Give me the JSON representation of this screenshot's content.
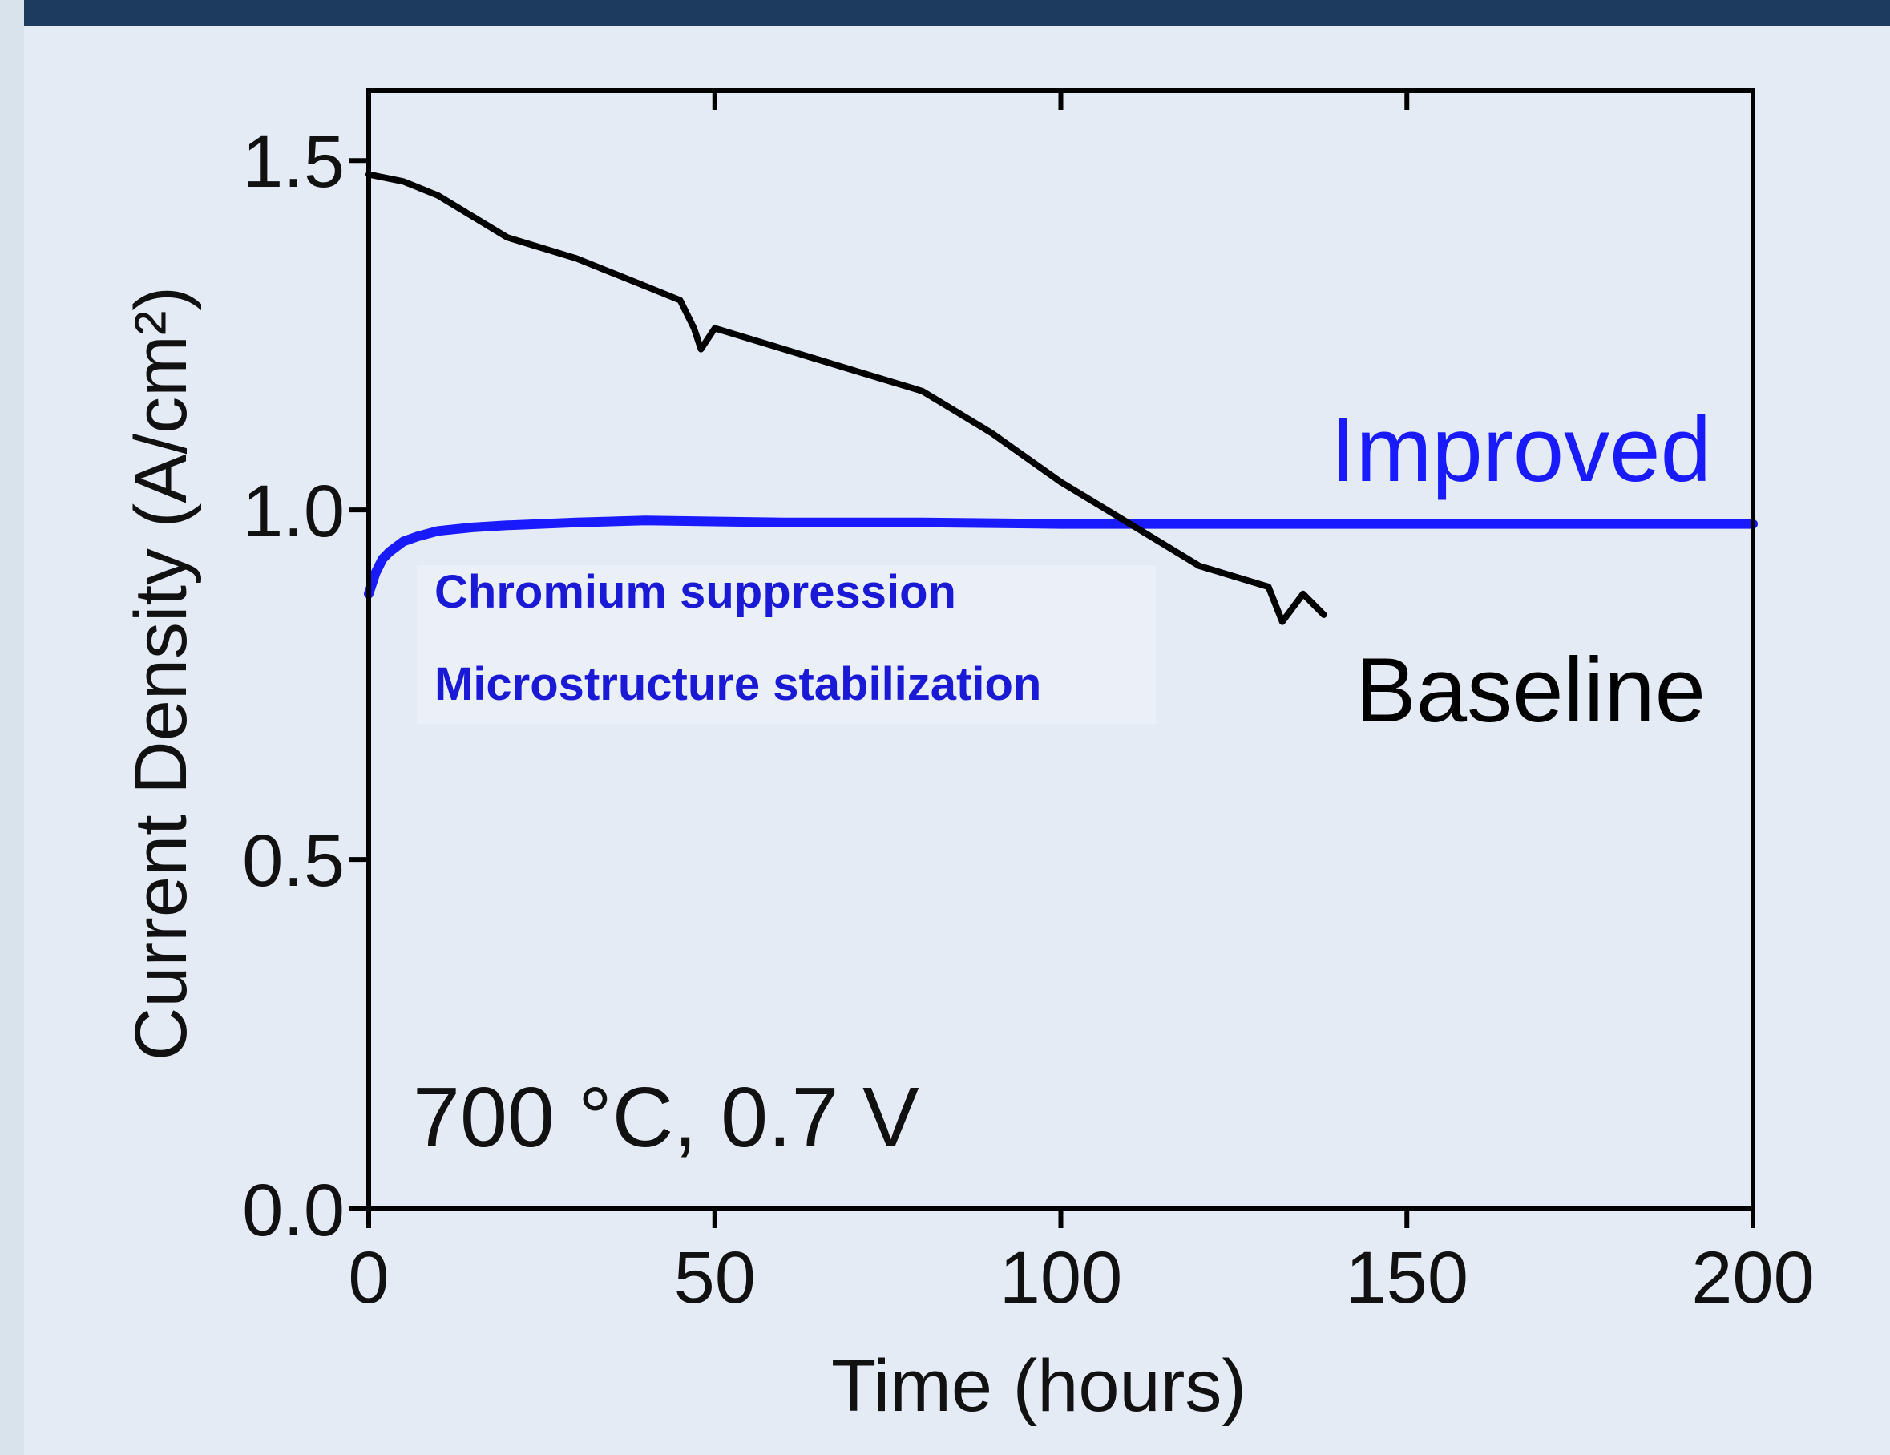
{
  "chart_data": {
    "type": "line",
    "xlabel": "Time (hours)",
    "ylabel": "Current Density (A/cm²)",
    "xlim": [
      0,
      200
    ],
    "xticks": [
      0,
      50,
      100,
      150,
      200
    ],
    "ylim": [
      0,
      1.6
    ],
    "yticks": [
      {
        "value": 0,
        "label": "0.0"
      },
      0.5,
      {
        "value": 1,
        "label": "1.0"
      },
      1.5
    ],
    "annotations": [
      "Chromium suppression",
      "Microstructure stabilization",
      "700 °C, 0.7 V"
    ],
    "series": [
      {
        "name": "Improved",
        "color": "#1a1aff",
        "x": [
          0,
          1,
          2,
          3,
          5,
          7,
          10,
          15,
          20,
          30,
          40,
          60,
          80,
          100,
          120,
          150,
          200
        ],
        "values": [
          0.88,
          0.91,
          0.93,
          0.94,
          0.955,
          0.962,
          0.97,
          0.975,
          0.978,
          0.982,
          0.985,
          0.982,
          0.982,
          0.98,
          0.98,
          0.98,
          0.98
        ]
      },
      {
        "name": "Baseline",
        "color": "#000000",
        "x": [
          0,
          5,
          10,
          15,
          20,
          30,
          40,
          45,
          47,
          48,
          50,
          60,
          70,
          80,
          90,
          100,
          105,
          110,
          115,
          120,
          130,
          132,
          135,
          138
        ],
        "values": [
          1.48,
          1.47,
          1.45,
          1.42,
          1.39,
          1.36,
          1.32,
          1.3,
          1.26,
          1.23,
          1.26,
          1.23,
          1.2,
          1.17,
          1.11,
          1.04,
          1.01,
          0.98,
          0.95,
          0.92,
          0.89,
          0.84,
          0.88,
          0.85
        ]
      }
    ]
  }
}
